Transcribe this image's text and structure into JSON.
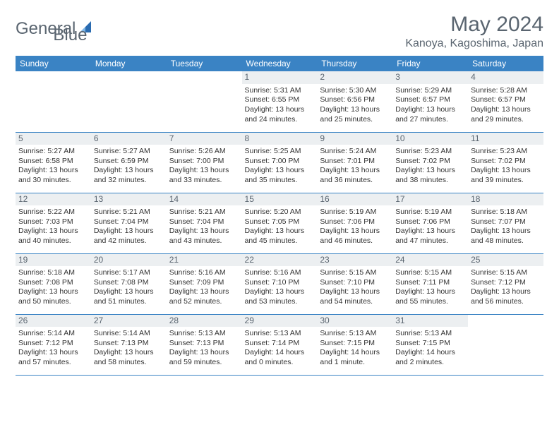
{
  "brand": {
    "name1": "General",
    "name2": "Blue"
  },
  "title": "May 2024",
  "location": "Kanoya, Kagoshima, Japan",
  "colors": {
    "header_bg": "#3a83c4",
    "header_text": "#ffffff",
    "daynum_bg": "#eceff1",
    "text": "#5a6570",
    "logo_blue": "#2a6bb0"
  },
  "day_headers": [
    "Sunday",
    "Monday",
    "Tuesday",
    "Wednesday",
    "Thursday",
    "Friday",
    "Saturday"
  ],
  "weeks": [
    [
      {
        "n": "",
        "s": "",
        "t": "",
        "d": ""
      },
      {
        "n": "",
        "s": "",
        "t": "",
        "d": ""
      },
      {
        "n": "",
        "s": "",
        "t": "",
        "d": ""
      },
      {
        "n": "1",
        "s": "Sunrise: 5:31 AM",
        "t": "Sunset: 6:55 PM",
        "d": "Daylight: 13 hours and 24 minutes."
      },
      {
        "n": "2",
        "s": "Sunrise: 5:30 AM",
        "t": "Sunset: 6:56 PM",
        "d": "Daylight: 13 hours and 25 minutes."
      },
      {
        "n": "3",
        "s": "Sunrise: 5:29 AM",
        "t": "Sunset: 6:57 PM",
        "d": "Daylight: 13 hours and 27 minutes."
      },
      {
        "n": "4",
        "s": "Sunrise: 5:28 AM",
        "t": "Sunset: 6:57 PM",
        "d": "Daylight: 13 hours and 29 minutes."
      }
    ],
    [
      {
        "n": "5",
        "s": "Sunrise: 5:27 AM",
        "t": "Sunset: 6:58 PM",
        "d": "Daylight: 13 hours and 30 minutes."
      },
      {
        "n": "6",
        "s": "Sunrise: 5:27 AM",
        "t": "Sunset: 6:59 PM",
        "d": "Daylight: 13 hours and 32 minutes."
      },
      {
        "n": "7",
        "s": "Sunrise: 5:26 AM",
        "t": "Sunset: 7:00 PM",
        "d": "Daylight: 13 hours and 33 minutes."
      },
      {
        "n": "8",
        "s": "Sunrise: 5:25 AM",
        "t": "Sunset: 7:00 PM",
        "d": "Daylight: 13 hours and 35 minutes."
      },
      {
        "n": "9",
        "s": "Sunrise: 5:24 AM",
        "t": "Sunset: 7:01 PM",
        "d": "Daylight: 13 hours and 36 minutes."
      },
      {
        "n": "10",
        "s": "Sunrise: 5:23 AM",
        "t": "Sunset: 7:02 PM",
        "d": "Daylight: 13 hours and 38 minutes."
      },
      {
        "n": "11",
        "s": "Sunrise: 5:23 AM",
        "t": "Sunset: 7:02 PM",
        "d": "Daylight: 13 hours and 39 minutes."
      }
    ],
    [
      {
        "n": "12",
        "s": "Sunrise: 5:22 AM",
        "t": "Sunset: 7:03 PM",
        "d": "Daylight: 13 hours and 40 minutes."
      },
      {
        "n": "13",
        "s": "Sunrise: 5:21 AM",
        "t": "Sunset: 7:04 PM",
        "d": "Daylight: 13 hours and 42 minutes."
      },
      {
        "n": "14",
        "s": "Sunrise: 5:21 AM",
        "t": "Sunset: 7:04 PM",
        "d": "Daylight: 13 hours and 43 minutes."
      },
      {
        "n": "15",
        "s": "Sunrise: 5:20 AM",
        "t": "Sunset: 7:05 PM",
        "d": "Daylight: 13 hours and 45 minutes."
      },
      {
        "n": "16",
        "s": "Sunrise: 5:19 AM",
        "t": "Sunset: 7:06 PM",
        "d": "Daylight: 13 hours and 46 minutes."
      },
      {
        "n": "17",
        "s": "Sunrise: 5:19 AM",
        "t": "Sunset: 7:06 PM",
        "d": "Daylight: 13 hours and 47 minutes."
      },
      {
        "n": "18",
        "s": "Sunrise: 5:18 AM",
        "t": "Sunset: 7:07 PM",
        "d": "Daylight: 13 hours and 48 minutes."
      }
    ],
    [
      {
        "n": "19",
        "s": "Sunrise: 5:18 AM",
        "t": "Sunset: 7:08 PM",
        "d": "Daylight: 13 hours and 50 minutes."
      },
      {
        "n": "20",
        "s": "Sunrise: 5:17 AM",
        "t": "Sunset: 7:08 PM",
        "d": "Daylight: 13 hours and 51 minutes."
      },
      {
        "n": "21",
        "s": "Sunrise: 5:16 AM",
        "t": "Sunset: 7:09 PM",
        "d": "Daylight: 13 hours and 52 minutes."
      },
      {
        "n": "22",
        "s": "Sunrise: 5:16 AM",
        "t": "Sunset: 7:10 PM",
        "d": "Daylight: 13 hours and 53 minutes."
      },
      {
        "n": "23",
        "s": "Sunrise: 5:15 AM",
        "t": "Sunset: 7:10 PM",
        "d": "Daylight: 13 hours and 54 minutes."
      },
      {
        "n": "24",
        "s": "Sunrise: 5:15 AM",
        "t": "Sunset: 7:11 PM",
        "d": "Daylight: 13 hours and 55 minutes."
      },
      {
        "n": "25",
        "s": "Sunrise: 5:15 AM",
        "t": "Sunset: 7:12 PM",
        "d": "Daylight: 13 hours and 56 minutes."
      }
    ],
    [
      {
        "n": "26",
        "s": "Sunrise: 5:14 AM",
        "t": "Sunset: 7:12 PM",
        "d": "Daylight: 13 hours and 57 minutes."
      },
      {
        "n": "27",
        "s": "Sunrise: 5:14 AM",
        "t": "Sunset: 7:13 PM",
        "d": "Daylight: 13 hours and 58 minutes."
      },
      {
        "n": "28",
        "s": "Sunrise: 5:13 AM",
        "t": "Sunset: 7:13 PM",
        "d": "Daylight: 13 hours and 59 minutes."
      },
      {
        "n": "29",
        "s": "Sunrise: 5:13 AM",
        "t": "Sunset: 7:14 PM",
        "d": "Daylight: 14 hours and 0 minutes."
      },
      {
        "n": "30",
        "s": "Sunrise: 5:13 AM",
        "t": "Sunset: 7:15 PM",
        "d": "Daylight: 14 hours and 1 minute."
      },
      {
        "n": "31",
        "s": "Sunrise: 5:13 AM",
        "t": "Sunset: 7:15 PM",
        "d": "Daylight: 14 hours and 2 minutes."
      },
      {
        "n": "",
        "s": "",
        "t": "",
        "d": ""
      }
    ]
  ]
}
